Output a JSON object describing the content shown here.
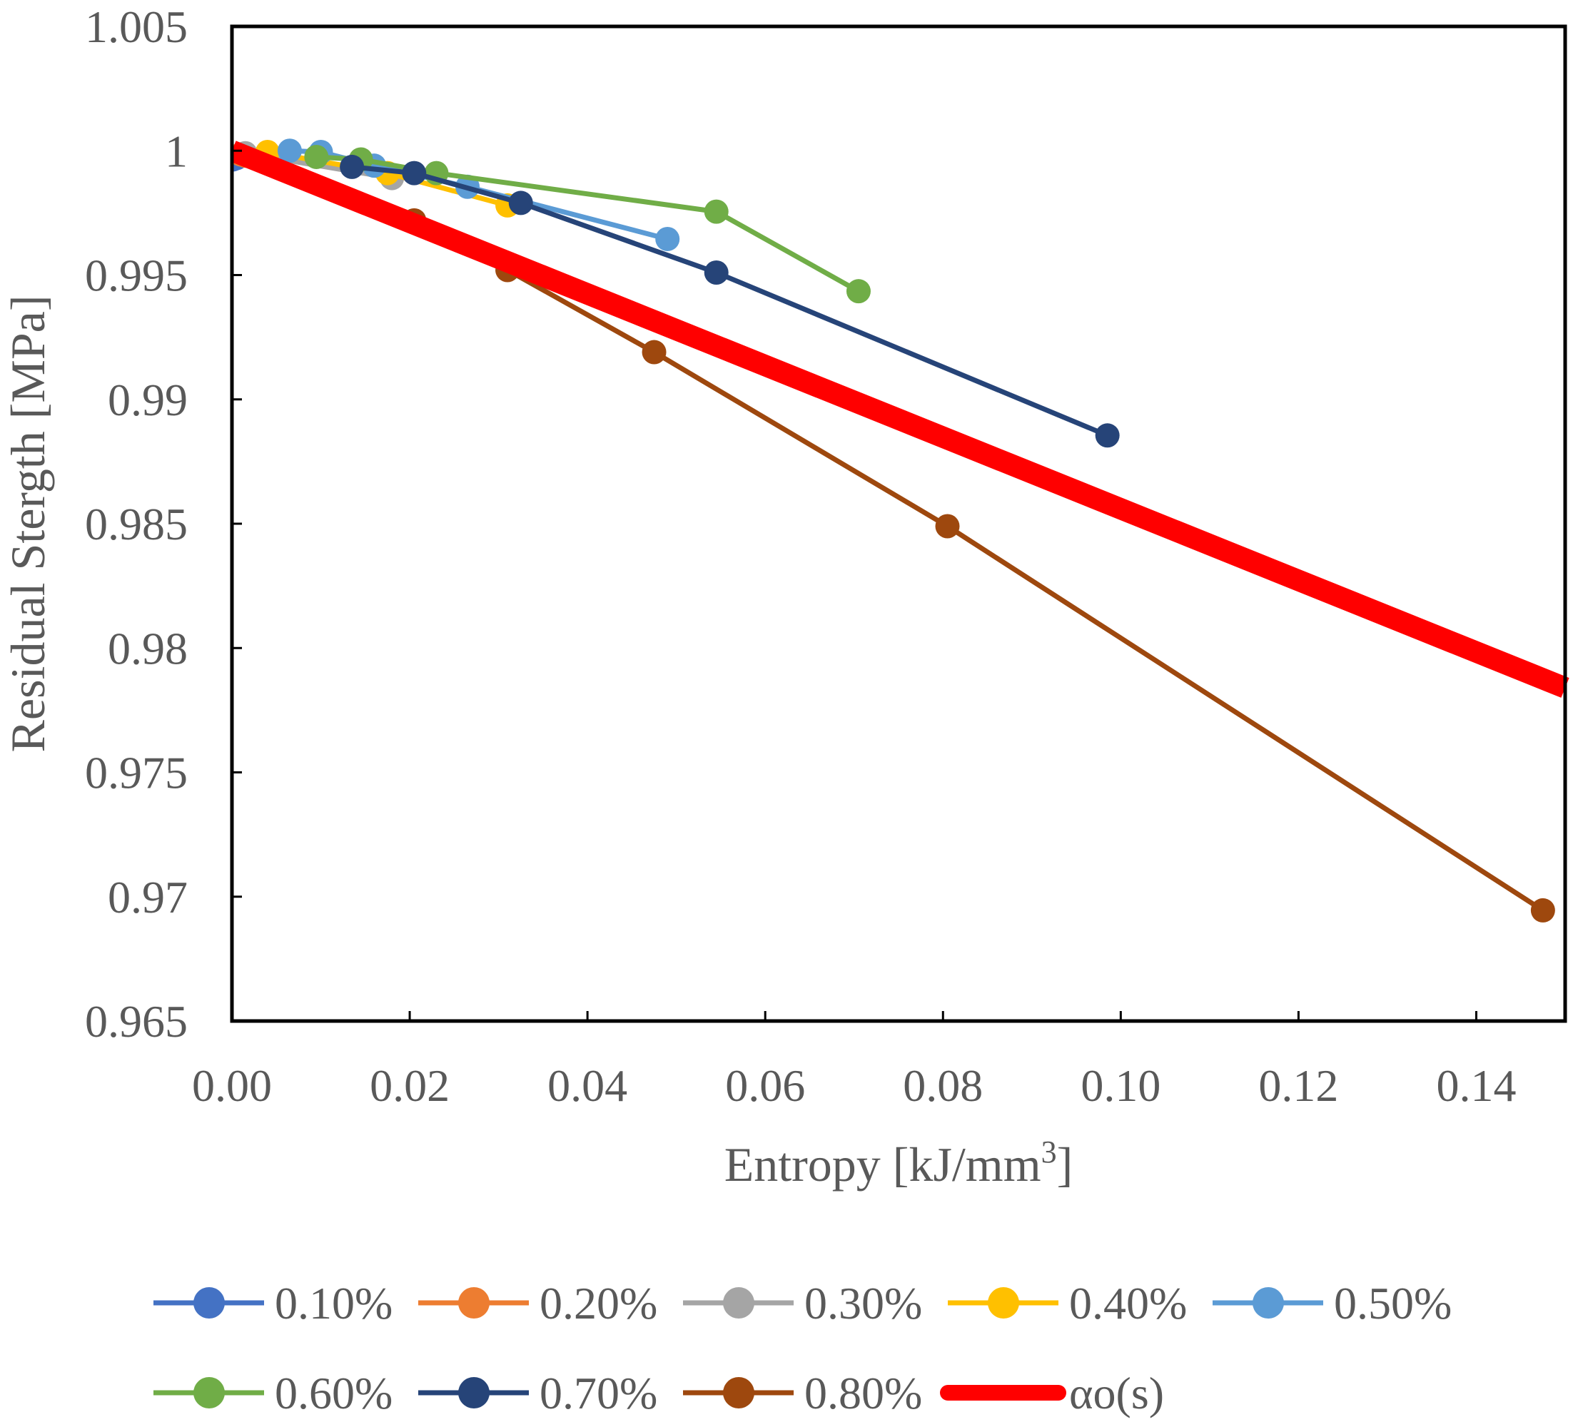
{
  "chart_data": {
    "type": "line",
    "title": "",
    "xlabel": "Entropy [kJ/mm",
    "xlabel_superscript": "3",
    "xlabel_suffix": "]",
    "ylabel": "Residual Stergth [MPa]",
    "xlim": [
      0,
      0.15
    ],
    "ylim": [
      0.965,
      1.005
    ],
    "x_ticks": [
      "0.00",
      "0.02",
      "0.04",
      "0.06",
      "0.08",
      "0.10",
      "0.12",
      "0.14"
    ],
    "y_ticks": [
      "1.005",
      "1",
      "0.995",
      "0.99",
      "0.985",
      "0.98",
      "0.975",
      "0.97",
      "0.965"
    ],
    "x_tick_values": [
      0,
      0.02,
      0.04,
      0.06,
      0.08,
      0.1,
      0.12,
      0.14
    ],
    "y_tick_values": [
      1.005,
      1.0,
      0.995,
      0.99,
      0.985,
      0.98,
      0.975,
      0.97,
      0.965
    ],
    "grid": false,
    "legend_position": "bottom",
    "series": [
      {
        "name": "0.10%",
        "color": "#4472C4",
        "marker": true,
        "points": [
          [
            0.0001,
            0.99965
          ],
          [
            0.0005,
            0.9997
          ]
        ]
      },
      {
        "name": "0.20%",
        "color": "#ED7D31",
        "marker": true,
        "points": [
          [
            0.001,
            0.99985
          ],
          [
            0.0015,
            0.9998
          ]
        ]
      },
      {
        "name": "0.30%",
        "color": "#A5A5A5",
        "marker": true,
        "points": [
          [
            0.0015,
            0.9999
          ],
          [
            0.018,
            0.9989
          ]
        ]
      },
      {
        "name": "0.40%",
        "color": "#FFC000",
        "marker": true,
        "points": [
          [
            0.004,
            0.99995
          ],
          [
            0.0175,
            0.9991
          ],
          [
            0.031,
            0.9978
          ]
        ]
      },
      {
        "name": "0.50%",
        "color": "#5B9BD5",
        "marker": true,
        "points": [
          [
            0.0065,
            1.0
          ],
          [
            0.01,
            0.99995
          ],
          [
            0.016,
            0.9994
          ],
          [
            0.0265,
            0.99855
          ],
          [
            0.049,
            0.99645
          ]
        ]
      },
      {
        "name": "0.60%",
        "color": "#70AD47",
        "marker": true,
        "points": [
          [
            0.0095,
            0.99975
          ],
          [
            0.0145,
            0.99965
          ],
          [
            0.023,
            0.9991
          ],
          [
            0.0545,
            0.99755
          ],
          [
            0.0705,
            0.99435
          ]
        ]
      },
      {
        "name": "0.70%",
        "color": "#264478",
        "marker": true,
        "points": [
          [
            0.0135,
            0.99935
          ],
          [
            0.0205,
            0.9991
          ],
          [
            0.0325,
            0.9979
          ],
          [
            0.0545,
            0.9951
          ],
          [
            0.0985,
            0.98855
          ]
        ]
      },
      {
        "name": "0.80%",
        "color": "#9E480E",
        "marker": true,
        "points": [
          [
            0.0205,
            0.9972
          ],
          [
            0.031,
            0.9952
          ],
          [
            0.0475,
            0.9919
          ],
          [
            0.0805,
            0.9849
          ],
          [
            0.1475,
            0.96945
          ]
        ]
      },
      {
        "name": "αo(s)",
        "color": "#FF0000",
        "marker": false,
        "thick": true,
        "points": [
          [
            0.0,
            1.0
          ],
          [
            0.15,
            0.9784
          ]
        ]
      }
    ]
  }
}
